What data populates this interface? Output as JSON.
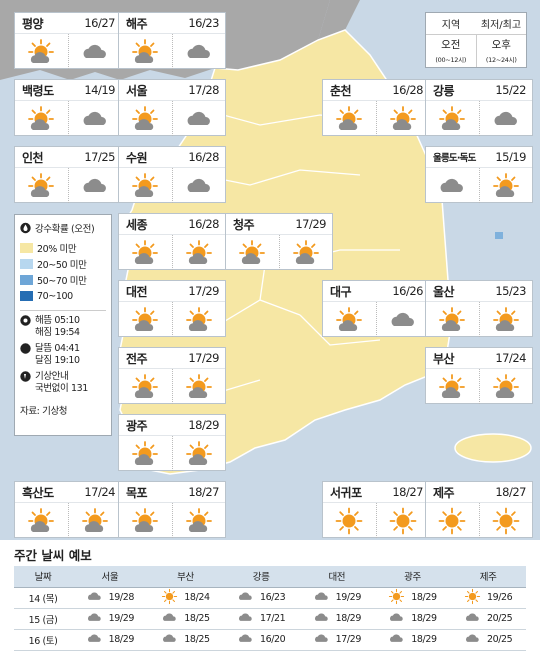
{
  "legend": {
    "region_label": "지역",
    "temp_label": "최저/최고",
    "am_label": "오전",
    "am_range": "(00~12시)",
    "pm_label": "오후",
    "pm_range": "(12~24시)"
  },
  "rain_legend": {
    "title": "강수확률 (오전)",
    "items": [
      {
        "label": "20% 미만",
        "color": "#f6e7a4"
      },
      {
        "label": "20~50 미만",
        "color": "#b7d7ef"
      },
      {
        "label": "50~70 미만",
        "color": "#6ea6d7"
      },
      {
        "label": "70~100",
        "color": "#256db3"
      }
    ],
    "sunrise_label": "해뜸",
    "sunrise": "05:10",
    "sunset_label": "해짐",
    "sunset": "19:54",
    "moonrise_label": "달뜸",
    "moonrise": "04:41",
    "moonset_label": "달짐",
    "moonset": "19:10",
    "hotline_label1": "기상안내",
    "hotline_label2": "국번없이",
    "hotline": "131",
    "source": "자료: 기상청"
  },
  "cities": [
    {
      "name": "평양",
      "temp": "16/27",
      "am": "sun-cloud",
      "pm": "cloud"
    },
    {
      "name": "해주",
      "temp": "16/23",
      "am": "sun-cloud",
      "pm": "cloud"
    },
    {
      "name": "백령도",
      "temp": "14/19",
      "am": "sun-cloud",
      "pm": "cloud"
    },
    {
      "name": "서울",
      "temp": "17/28",
      "am": "sun-cloud",
      "pm": "cloud"
    },
    {
      "name": "춘천",
      "temp": "16/28",
      "am": "sun-cloud",
      "pm": "sun-cloud"
    },
    {
      "name": "강릉",
      "temp": "15/22",
      "am": "sun-cloud",
      "pm": "cloud"
    },
    {
      "name": "인천",
      "temp": "17/25",
      "am": "sun-cloud",
      "pm": "cloud"
    },
    {
      "name": "수원",
      "temp": "16/28",
      "am": "sun-cloud",
      "pm": "cloud"
    },
    {
      "name": "울릉도·독도",
      "temp": "15/19",
      "am": "cloud",
      "pm": "sun-cloud"
    },
    {
      "name": "세종",
      "temp": "16/28",
      "am": "sun-cloud",
      "pm": "sun-cloud"
    },
    {
      "name": "청주",
      "temp": "17/29",
      "am": "sun-cloud",
      "pm": "sun-cloud"
    },
    {
      "name": "대전",
      "temp": "17/29",
      "am": "sun-cloud",
      "pm": "sun-cloud"
    },
    {
      "name": "대구",
      "temp": "16/26",
      "am": "sun-cloud",
      "pm": "cloud"
    },
    {
      "name": "울산",
      "temp": "15/23",
      "am": "sun-cloud",
      "pm": "sun-cloud"
    },
    {
      "name": "전주",
      "temp": "17/29",
      "am": "sun-cloud",
      "pm": "sun-cloud"
    },
    {
      "name": "부산",
      "temp": "17/24",
      "am": "sun-cloud",
      "pm": "sun-cloud"
    },
    {
      "name": "광주",
      "temp": "18/29",
      "am": "sun-cloud",
      "pm": "sun-cloud"
    },
    {
      "name": "흑산도",
      "temp": "17/24",
      "am": "sun-cloud",
      "pm": "sun-cloud"
    },
    {
      "name": "목포",
      "temp": "18/27",
      "am": "sun-cloud",
      "pm": "sun-cloud"
    },
    {
      "name": "서귀포",
      "temp": "18/27",
      "am": "sun",
      "pm": "sun"
    },
    {
      "name": "제주",
      "temp": "18/27",
      "am": "sun",
      "pm": "sun"
    }
  ],
  "weekly": {
    "title": "주간 날씨 예보",
    "headers": [
      "날짜",
      "서울",
      "부산",
      "강릉",
      "대전",
      "광주",
      "제주"
    ],
    "rows": [
      {
        "date": "14 (목)",
        "cells": [
          {
            "icon": "cloud",
            "temp": "19/28"
          },
          {
            "icon": "sun",
            "temp": "18/24"
          },
          {
            "icon": "cloud",
            "temp": "16/23"
          },
          {
            "icon": "cloud",
            "temp": "19/29"
          },
          {
            "icon": "sun",
            "temp": "18/29"
          },
          {
            "icon": "sun",
            "temp": "19/26"
          }
        ]
      },
      {
        "date": "15 (금)",
        "cells": [
          {
            "icon": "cloud",
            "temp": "19/29"
          },
          {
            "icon": "cloud",
            "temp": "18/25"
          },
          {
            "icon": "cloud",
            "temp": "17/21"
          },
          {
            "icon": "cloud",
            "temp": "18/29"
          },
          {
            "icon": "cloud",
            "temp": "18/29"
          },
          {
            "icon": "cloud",
            "temp": "20/25"
          }
        ]
      },
      {
        "date": "16 (토)",
        "cells": [
          {
            "icon": "cloud",
            "temp": "18/29"
          },
          {
            "icon": "cloud",
            "temp": "18/25"
          },
          {
            "icon": "cloud",
            "temp": "16/20"
          },
          {
            "icon": "cloud",
            "temp": "17/29"
          },
          {
            "icon": "cloud",
            "temp": "18/29"
          },
          {
            "icon": "cloud",
            "temp": "20/25"
          }
        ]
      }
    ]
  },
  "colors": {
    "sea": "#c9d8e6",
    "land_south": "#f6e7a4",
    "land_north": "#a8a8a8",
    "sun": "#f39a1e",
    "cloud": "#8c8c8c"
  }
}
